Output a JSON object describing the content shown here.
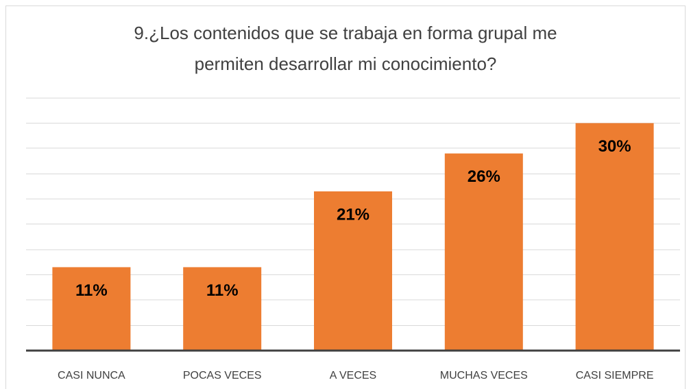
{
  "chart_data": {
    "type": "bar",
    "title": [
      "9.¿Los contenidos que se trabaja en forma grupal me",
      "permiten desarrollar mi conocimiento?"
    ],
    "categories": [
      "CASI NUNCA",
      "POCAS VECES",
      "A VECES",
      "MUCHAS VECES",
      "CASI SIEMPRE"
    ],
    "values": [
      11,
      11,
      21,
      26,
      30
    ],
    "value_labels": [
      "11%",
      "11%",
      "21%",
      "26%",
      "30%"
    ],
    "color": "#ed7d31",
    "ylim": [
      0,
      33.3
    ],
    "yticks": [
      0,
      3.3,
      6.7,
      10,
      13.3,
      16.7,
      20,
      23.3,
      26.7,
      30,
      33.3
    ],
    "grid": true
  }
}
